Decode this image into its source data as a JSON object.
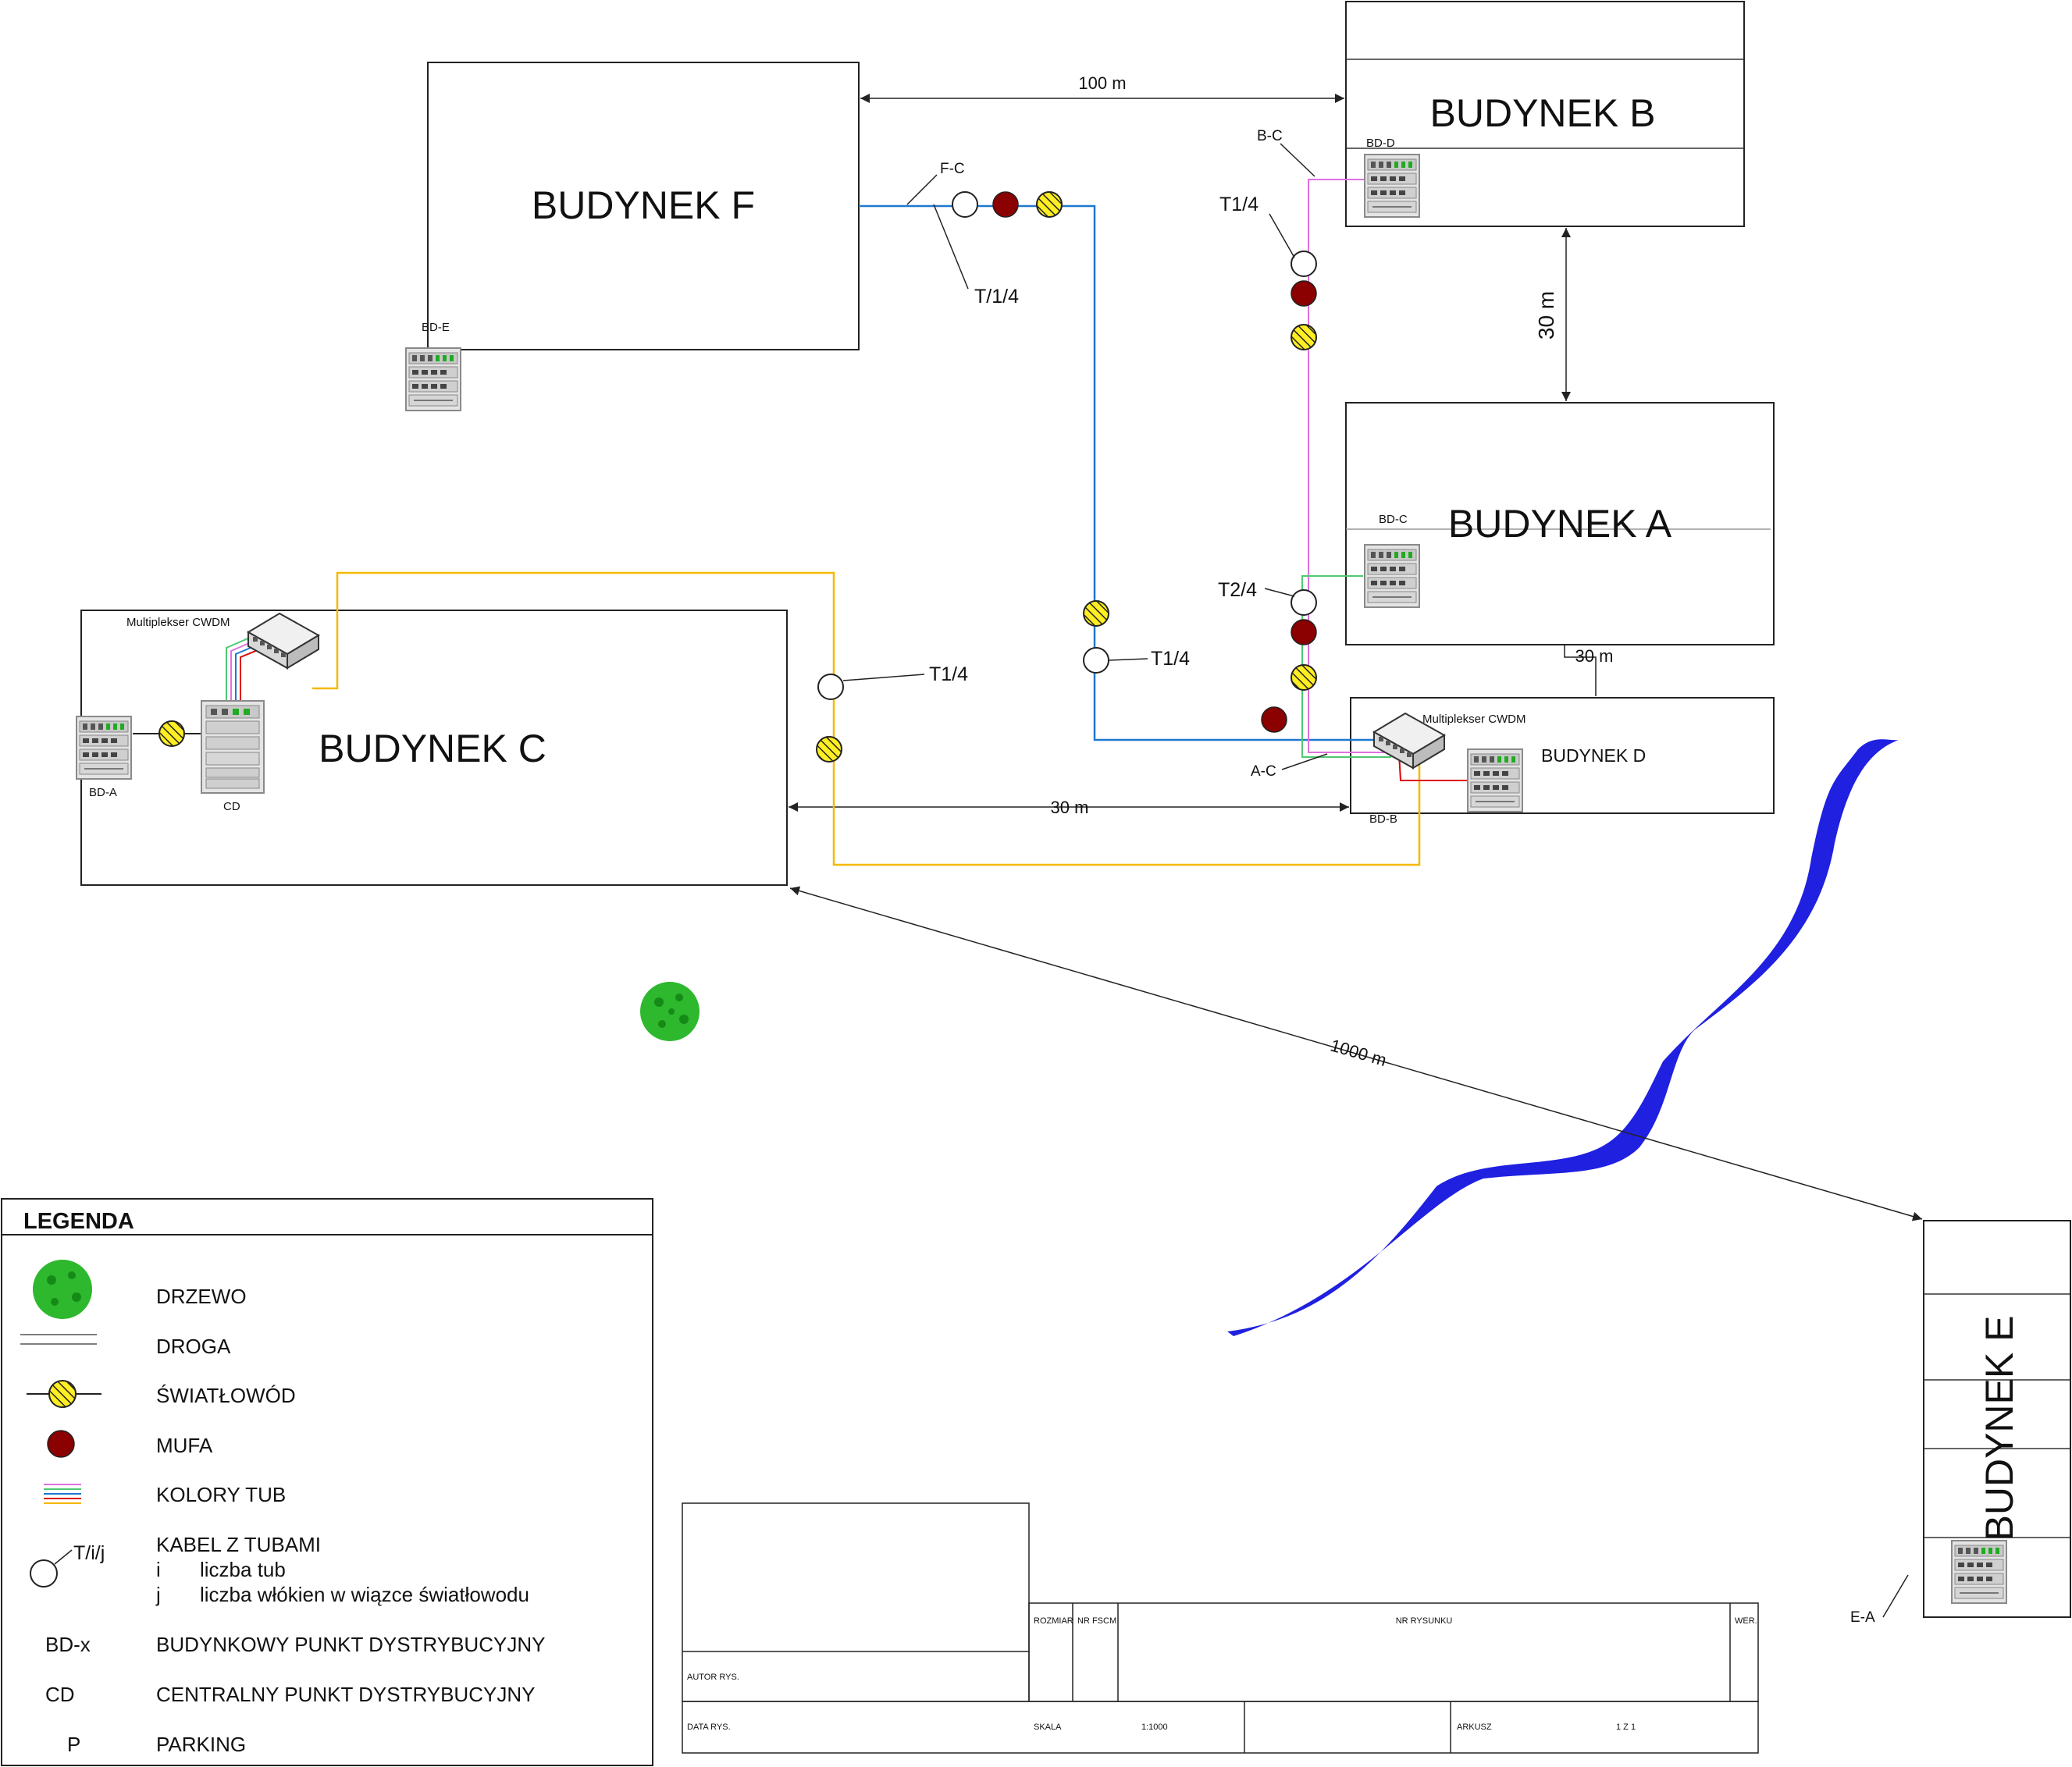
{
  "buildings": {
    "f": {
      "name": "BUDYNEK F",
      "bd": "BD-E"
    },
    "b": {
      "name": "BUDYNEK B",
      "bd": "BD-D"
    },
    "a": {
      "name": "BUDYNEK A",
      "bd": "BD-C"
    },
    "c": {
      "name": "BUDYNEK C",
      "bd": "BD-A",
      "cd": "CD",
      "mux": "Multiplekser CWDM"
    },
    "d": {
      "name": "BUDYNEK D",
      "bd": "BD-B",
      "mux": "Multiplekser CWDM"
    },
    "e": {
      "name": "BUDYNEK E"
    }
  },
  "distances": {
    "f_b": "100 m",
    "b_a": "30 m",
    "a_d": "30 m",
    "c_d": "30 m",
    "c_e": "1000 m"
  },
  "links": {
    "fc": "F-C",
    "bc": "B-C",
    "ac": "A-C",
    "ea": "E-A"
  },
  "cables": {
    "fc_cable": "T/1/4",
    "bc_cable": "T1/4",
    "ac_cable": "T2/4",
    "fc_mid_cable": "T1/4",
    "ce_cable": "T1/4"
  },
  "colors": {
    "fiber_blue": "#1e78d0",
    "fiber_pink": "#e070e0",
    "fiber_orange": "#f5b800",
    "fiber_green": "#4fc870",
    "fiber_red": "#dd0000",
    "mufa": "#8b0000",
    "river": "#2020e0",
    "tree": "#2db82d",
    "swiatlowod_fill": "#ffee22"
  },
  "legend": {
    "title": "LEGENDA",
    "items": [
      {
        "label": "DRZEWO",
        "icon": "tree-icon"
      },
      {
        "label": "DROGA",
        "icon": "road-icon"
      },
      {
        "label": "ŚWIATŁOWÓD",
        "icon": "fiber-icon"
      },
      {
        "label": "MUFA",
        "icon": "mufa-icon"
      },
      {
        "label": "KOLORY TUB",
        "icon": "tube-colors-icon"
      }
    ],
    "kabel": {
      "icon_label": "T/i/j",
      "label": "KABEL Z TUBAMI",
      "i_key": "i",
      "i_desc": "liczba tub",
      "j_key": "j",
      "j_desc": "liczba włókien w wiązce światłowodu"
    },
    "abbreviations": [
      {
        "key": "BD-x",
        "desc": "BUDYNKOWY PUNKT DYSTRYBUCYJNY"
      },
      {
        "key": "CD",
        "desc": "CENTRALNY PUNKT DYSTRYBUCYJNY"
      },
      {
        "key": "P",
        "desc": "PARKING"
      }
    ]
  },
  "title_block": {
    "rozmiar": "ROZMIAR",
    "nr_fscm": "NR FSCM",
    "nr_rysunku": "NR RYSUNKU",
    "wer": "WER.",
    "autor": "AUTOR RYS.",
    "data": "DATA RYS.",
    "skala_label": "SKALA",
    "skala_value": "1:1000",
    "arkusz_label": "ARKUSZ",
    "arkusz_value": "1 Z 1"
  }
}
